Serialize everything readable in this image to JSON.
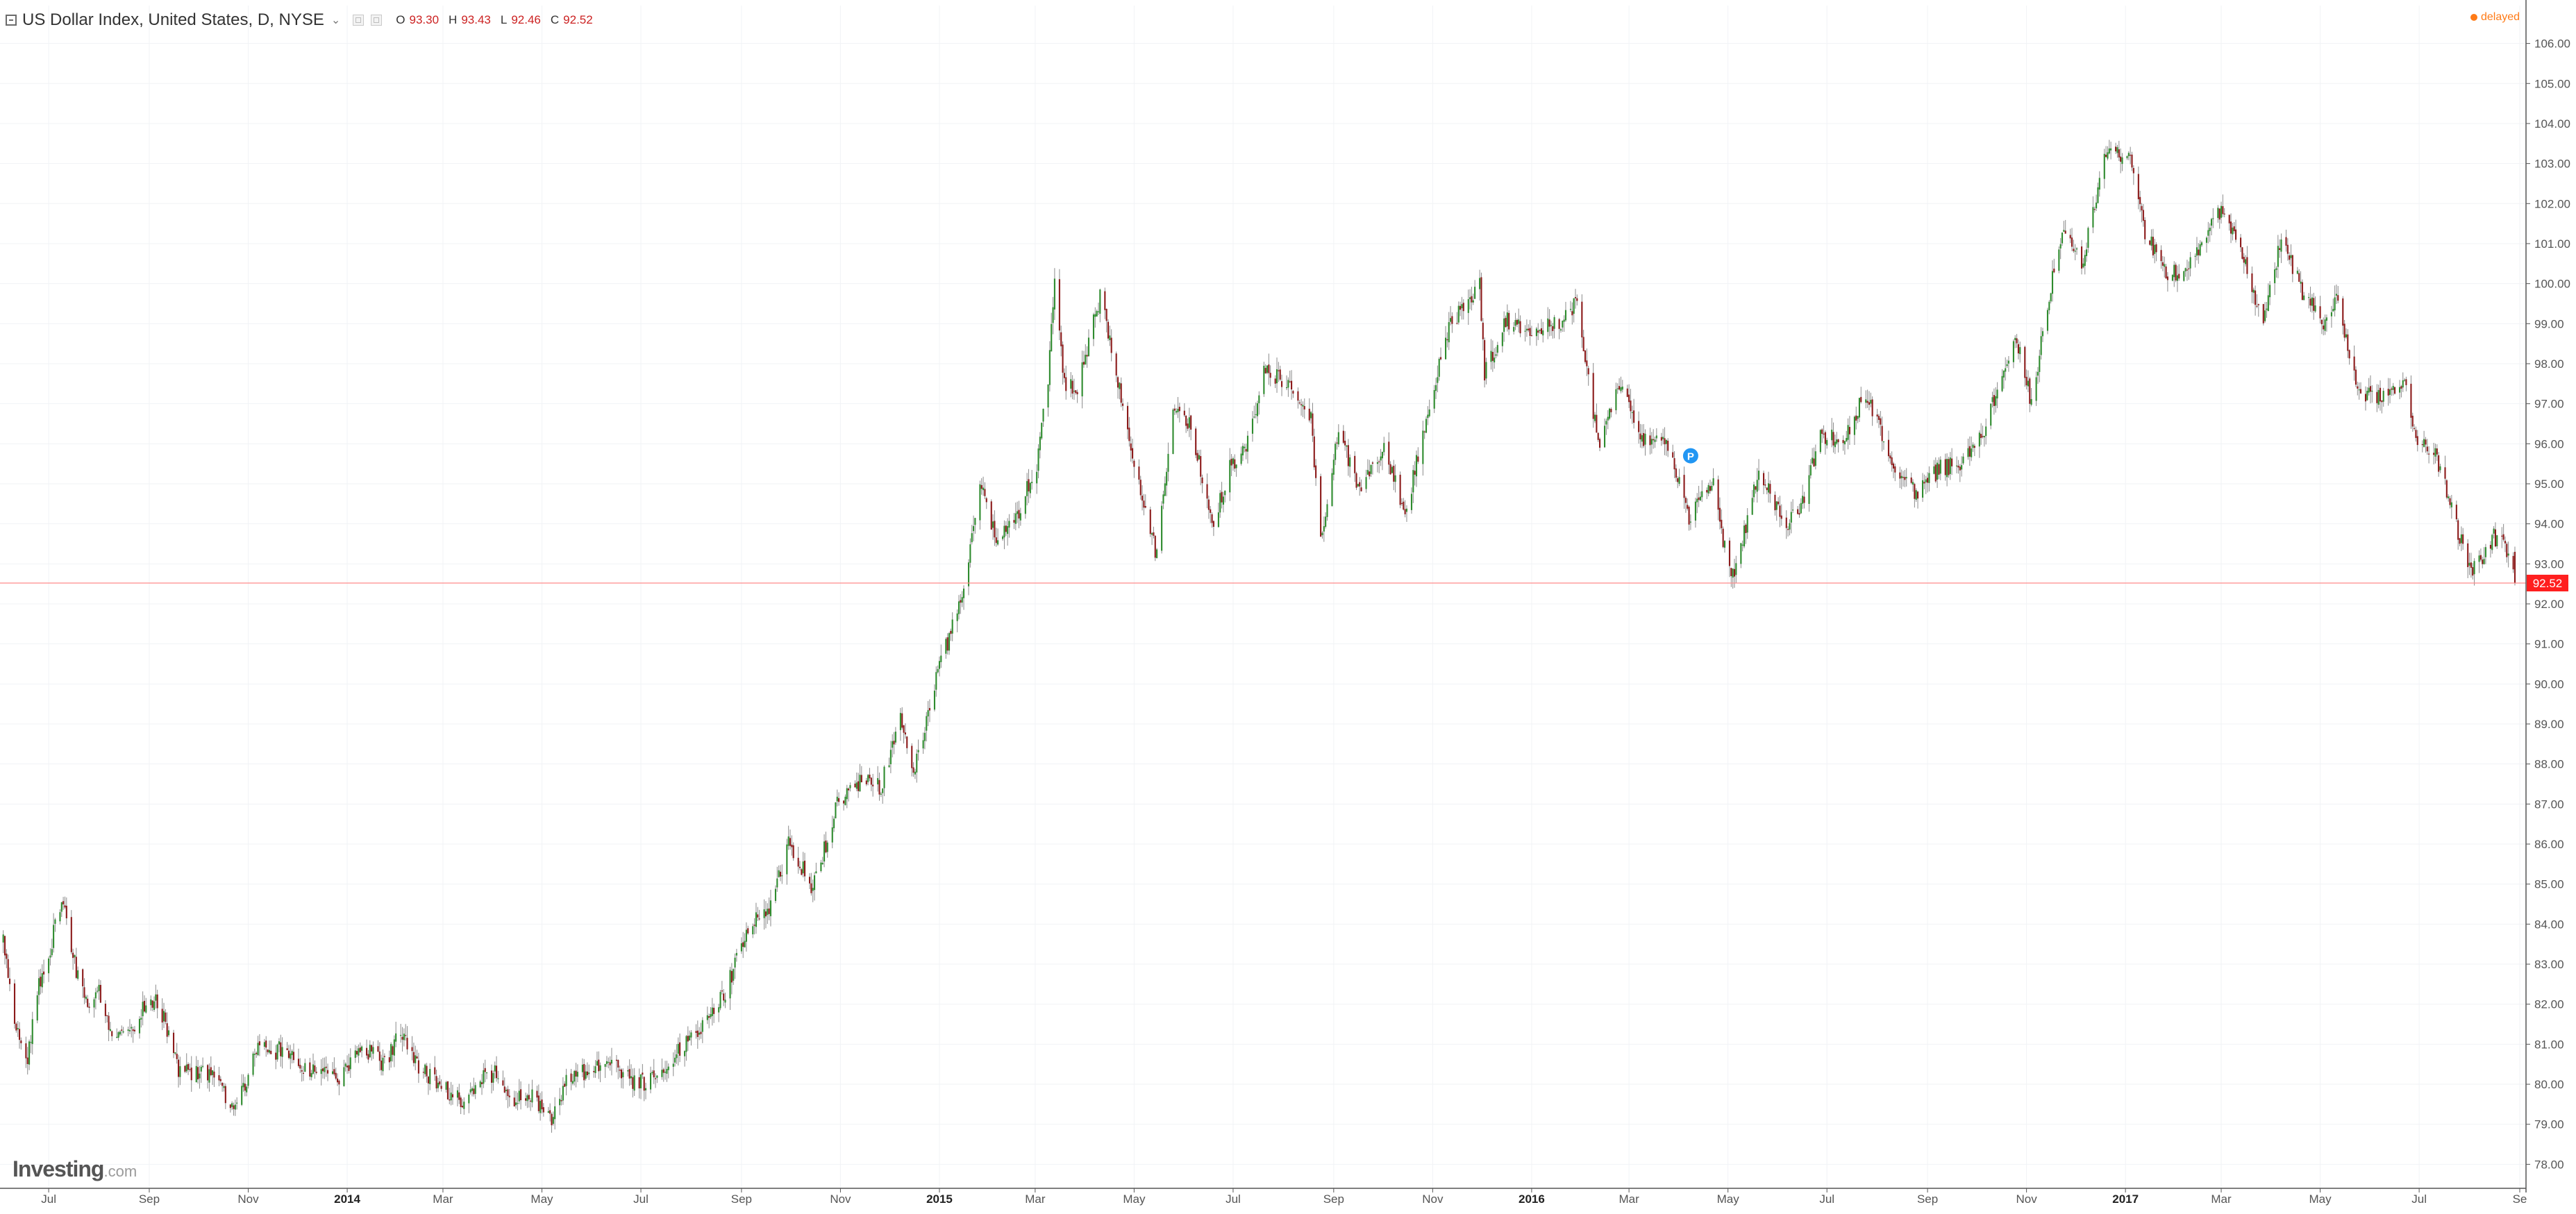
{
  "header": {
    "title": "US Dollar Index, United States, D, NYSE",
    "caret": "⌄",
    "ohlc": [
      {
        "label": "O",
        "value": "93.30"
      },
      {
        "label": "H",
        "value": "93.43"
      },
      {
        "label": "L",
        "value": "92.46"
      },
      {
        "label": "C",
        "value": "92.52"
      }
    ]
  },
  "status": {
    "delayed": "delayed"
  },
  "brand": {
    "main": "Investing",
    "sub": ".com"
  },
  "colors": {
    "up": "#2e8b2e",
    "down": "#8b1a1a",
    "wick": "#8a8a8a",
    "grid": "#f1f3f6",
    "axis": "#555555",
    "price_line": "#ff8a8a",
    "price_tag": "#ff1f1f",
    "delayed": "#ff7b17",
    "marker": "#2196f3"
  },
  "chart_data": {
    "type": "candlestick",
    "title": "US Dollar Index, United States, D, NYSE",
    "interval": "D",
    "x_range": [
      "2013-06-01",
      "2017-09-04"
    ],
    "ylim": [
      77.4,
      106.6
    ],
    "y_ticks": [
      "78.00",
      "79.00",
      "80.00",
      "81.00",
      "82.00",
      "83.00",
      "84.00",
      "85.00",
      "86.00",
      "87.00",
      "88.00",
      "89.00",
      "90.00",
      "91.00",
      "92.00",
      "93.00",
      "94.00",
      "95.00",
      "96.00",
      "97.00",
      "98.00",
      "99.00",
      "100.00",
      "101.00",
      "102.00",
      "103.00",
      "104.00",
      "105.00",
      "106.00"
    ],
    "x_ticks": [
      {
        "date": "2013-07-01",
        "label": "Jul",
        "bold": false
      },
      {
        "date": "2013-09-01",
        "label": "Sep",
        "bold": false
      },
      {
        "date": "2013-11-01",
        "label": "Nov",
        "bold": false
      },
      {
        "date": "2014-01-01",
        "label": "2014",
        "bold": true
      },
      {
        "date": "2014-03-01",
        "label": "Mar",
        "bold": false
      },
      {
        "date": "2014-05-01",
        "label": "May",
        "bold": false
      },
      {
        "date": "2014-07-01",
        "label": "Jul",
        "bold": false
      },
      {
        "date": "2014-09-01",
        "label": "Sep",
        "bold": false
      },
      {
        "date": "2014-11-01",
        "label": "Nov",
        "bold": false
      },
      {
        "date": "2015-01-01",
        "label": "2015",
        "bold": true
      },
      {
        "date": "2015-03-01",
        "label": "Mar",
        "bold": false
      },
      {
        "date": "2015-05-01",
        "label": "May",
        "bold": false
      },
      {
        "date": "2015-07-01",
        "label": "Jul",
        "bold": false
      },
      {
        "date": "2015-09-01",
        "label": "Sep",
        "bold": false
      },
      {
        "date": "2015-11-01",
        "label": "Nov",
        "bold": false
      },
      {
        "date": "2016-01-01",
        "label": "2016",
        "bold": true
      },
      {
        "date": "2016-03-01",
        "label": "Mar",
        "bold": false
      },
      {
        "date": "2016-05-01",
        "label": "May",
        "bold": false
      },
      {
        "date": "2016-07-01",
        "label": "Jul",
        "bold": false
      },
      {
        "date": "2016-09-01",
        "label": "Sep",
        "bold": false
      },
      {
        "date": "2016-11-01",
        "label": "Nov",
        "bold": false
      },
      {
        "date": "2017-01-01",
        "label": "2017",
        "bold": true
      },
      {
        "date": "2017-03-01",
        "label": "Mar",
        "bold": false
      },
      {
        "date": "2017-05-01",
        "label": "May",
        "bold": false
      },
      {
        "date": "2017-07-01",
        "label": "Jul",
        "bold": false
      },
      {
        "date": "2017-09-01",
        "label": "Se",
        "bold": false
      }
    ],
    "close_path": [
      [
        "2013-06-03",
        83.6
      ],
      [
        "2013-06-10",
        81.5
      ],
      [
        "2013-06-18",
        80.6
      ],
      [
        "2013-06-24",
        82.4
      ],
      [
        "2013-07-01",
        83.2
      ],
      [
        "2013-07-09",
        84.7
      ],
      [
        "2013-07-15",
        83.3
      ],
      [
        "2013-07-24",
        82.0
      ],
      [
        "2013-08-01",
        82.3
      ],
      [
        "2013-08-08",
        81.4
      ],
      [
        "2013-08-20",
        81.3
      ],
      [
        "2013-08-30",
        82.0
      ],
      [
        "2013-09-06",
        82.1
      ],
      [
        "2013-09-12",
        81.4
      ],
      [
        "2013-09-19",
        80.3
      ],
      [
        "2013-10-01",
        80.3
      ],
      [
        "2013-10-10",
        80.3
      ],
      [
        "2013-10-24",
        79.3
      ],
      [
        "2013-10-31",
        80.1
      ],
      [
        "2013-11-07",
        81.1
      ],
      [
        "2013-11-15",
        80.8
      ],
      [
        "2013-11-25",
        80.9
      ],
      [
        "2013-12-05",
        80.4
      ],
      [
        "2013-12-16",
        80.4
      ],
      [
        "2013-12-27",
        80.0
      ],
      [
        "2014-01-09",
        81.0
      ],
      [
        "2014-01-24",
        80.5
      ],
      [
        "2014-02-03",
        81.3
      ],
      [
        "2014-02-14",
        80.4
      ],
      [
        "2014-02-27",
        80.0
      ],
      [
        "2014-03-14",
        79.5
      ],
      [
        "2014-03-25",
        80.2
      ],
      [
        "2014-04-04",
        80.3
      ],
      [
        "2014-04-11",
        79.5
      ],
      [
        "2014-04-22",
        79.8
      ],
      [
        "2014-05-07",
        79.1
      ],
      [
        "2014-05-15",
        80.0
      ],
      [
        "2014-05-30",
        80.4
      ],
      [
        "2014-06-13",
        80.5
      ],
      [
        "2014-06-27",
        80.0
      ],
      [
        "2014-07-10",
        80.1
      ],
      [
        "2014-07-24",
        80.9
      ],
      [
        "2014-08-07",
        81.4
      ],
      [
        "2014-08-21",
        82.2
      ],
      [
        "2014-09-05",
        83.9
      ],
      [
        "2014-09-19",
        84.4
      ],
      [
        "2014-09-30",
        86.0
      ],
      [
        "2014-10-15",
        84.9
      ],
      [
        "2014-10-31",
        87.1
      ],
      [
        "2014-11-14",
        87.6
      ],
      [
        "2014-11-26",
        87.4
      ],
      [
        "2014-12-08",
        89.3
      ],
      [
        "2014-12-16",
        87.8
      ],
      [
        "2014-12-31",
        90.3
      ],
      [
        "2015-01-14",
        92.0
      ],
      [
        "2015-01-26",
        95.0
      ],
      [
        "2015-02-05",
        93.6
      ],
      [
        "2015-02-19",
        94.3
      ],
      [
        "2015-03-02",
        95.5
      ],
      [
        "2015-03-09",
        97.6
      ],
      [
        "2015-03-13",
        100.3
      ],
      [
        "2015-03-19",
        97.5
      ],
      [
        "2015-03-27",
        97.3
      ],
      [
        "2015-04-10",
        99.7
      ],
      [
        "2015-04-22",
        97.4
      ],
      [
        "2015-05-06",
        94.5
      ],
      [
        "2015-05-15",
        93.2
      ],
      [
        "2015-05-26",
        97.0
      ],
      [
        "2015-06-05",
        96.5
      ],
      [
        "2015-06-18",
        94.0
      ],
      [
        "2015-06-30",
        95.5
      ],
      [
        "2015-07-10",
        96.0
      ],
      [
        "2015-07-20",
        97.8
      ],
      [
        "2015-08-04",
        97.5
      ],
      [
        "2015-08-18",
        96.6
      ],
      [
        "2015-08-24",
        93.5
      ],
      [
        "2015-09-04",
        96.3
      ],
      [
        "2015-09-18",
        94.8
      ],
      [
        "2015-10-02",
        96.0
      ],
      [
        "2015-10-15",
        94.2
      ],
      [
        "2015-10-30",
        97.0
      ],
      [
        "2015-11-12",
        99.0
      ],
      [
        "2015-11-30",
        100.0
      ],
      [
        "2015-12-03",
        97.8
      ],
      [
        "2015-12-17",
        99.1
      ],
      [
        "2015-12-31",
        98.7
      ],
      [
        "2016-01-20",
        99.1
      ],
      [
        "2016-01-29",
        99.6
      ],
      [
        "2016-02-11",
        96.0
      ],
      [
        "2016-02-25",
        97.6
      ],
      [
        "2016-03-10",
        96.1
      ],
      [
        "2016-03-24",
        96.0
      ],
      [
        "2016-04-07",
        94.2
      ],
      [
        "2016-04-22",
        95.0
      ],
      [
        "2016-05-03",
        92.5
      ],
      [
        "2016-05-20",
        95.3
      ],
      [
        "2016-06-06",
        93.9
      ],
      [
        "2016-06-16",
        94.5
      ],
      [
        "2016-06-27",
        96.2
      ],
      [
        "2016-07-11",
        96.1
      ],
      [
        "2016-07-25",
        97.3
      ],
      [
        "2016-08-10",
        95.6
      ],
      [
        "2016-08-25",
        94.7
      ],
      [
        "2016-09-09",
        95.4
      ],
      [
        "2016-09-22",
        95.5
      ],
      [
        "2016-10-06",
        96.3
      ],
      [
        "2016-10-25",
        98.8
      ],
      [
        "2016-11-04",
        97.0
      ],
      [
        "2016-11-14",
        99.5
      ],
      [
        "2016-11-24",
        101.5
      ],
      [
        "2016-12-05",
        100.5
      ],
      [
        "2016-12-20",
        103.2
      ],
      [
        "2017-01-03",
        103.2
      ],
      [
        "2017-01-13",
        101.3
      ],
      [
        "2017-01-26",
        100.2
      ],
      [
        "2017-02-07",
        100.4
      ],
      [
        "2017-02-21",
        101.3
      ],
      [
        "2017-03-01",
        101.9
      ],
      [
        "2017-03-16",
        100.4
      ],
      [
        "2017-03-27",
        99.1
      ],
      [
        "2017-04-07",
        101.1
      ],
      [
        "2017-04-20",
        99.8
      ],
      [
        "2017-05-03",
        99.0
      ],
      [
        "2017-05-11",
        99.6
      ],
      [
        "2017-05-25",
        97.2
      ],
      [
        "2017-06-09",
        97.2
      ],
      [
        "2017-06-21",
        97.6
      ],
      [
        "2017-06-30",
        96.1
      ],
      [
        "2017-07-11",
        95.8
      ],
      [
        "2017-07-24",
        93.9
      ],
      [
        "2017-08-03",
        92.8
      ],
      [
        "2017-08-16",
        93.7
      ],
      [
        "2017-08-25",
        93.3
      ],
      [
        "2017-08-29",
        92.52
      ]
    ],
    "last_candle": {
      "open": 93.3,
      "high": 93.43,
      "low": 92.46,
      "close": 92.52
    },
    "last_price": 92.52,
    "last_price_label": "92.52",
    "annotations": [
      {
        "type": "event-flag",
        "date": "2016-04-08",
        "value": 95.7,
        "label": "P"
      }
    ],
    "grid": true,
    "legend": "none"
  }
}
